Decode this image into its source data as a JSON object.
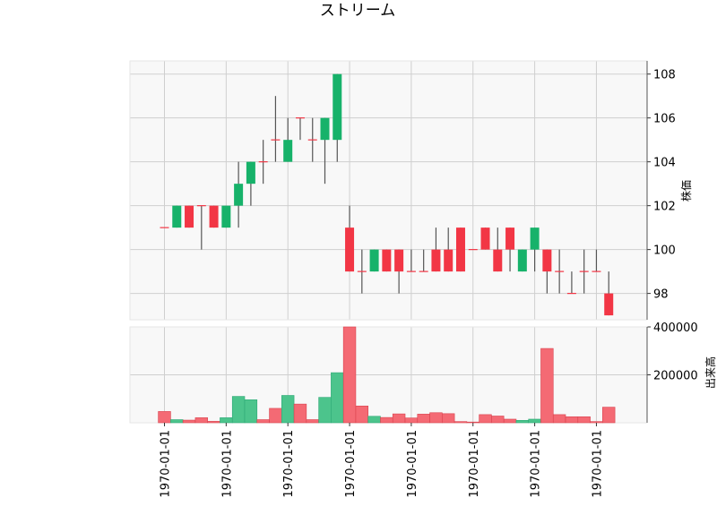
{
  "chart_data": {
    "type": "candlestick",
    "title": "ストリーム",
    "price_ylabel": "株価",
    "volume_ylabel": "出来高",
    "price_ylim": [
      96.8,
      108.6
    ],
    "volume_ylim": [
      0,
      400000
    ],
    "price_yticks": [
      98,
      100,
      102,
      104,
      106,
      108
    ],
    "volume_yticks": [
      200000,
      400000
    ],
    "volume_ytick_labels": [
      "200000",
      "400000"
    ],
    "x_tick_labels": [
      "1970-01-01",
      "1970-01-01",
      "1970-01-01",
      "1970-01-01",
      "1970-01-01",
      "1970-01-01",
      "1970-01-01",
      "1970-01-01"
    ],
    "colors": {
      "up": "#17b26a",
      "down": "#f23645",
      "wick": "#555555",
      "up_volume": "#4cc48c",
      "down_volume": "#f46a74",
      "panel_bg": "#f8f8f8",
      "grid": "#cfcfcf"
    },
    "candles": [
      {
        "open": 101,
        "high": 101,
        "low": 101,
        "close": 101,
        "volume": 47000
      },
      {
        "open": 101,
        "high": 102,
        "low": 101,
        "close": 102,
        "volume": 13000
      },
      {
        "open": 102,
        "high": 102,
        "low": 101,
        "close": 101,
        "volume": 11000
      },
      {
        "open": 102,
        "high": 102,
        "low": 100,
        "close": 102,
        "volume": 21000
      },
      {
        "open": 102,
        "high": 102,
        "low": 101,
        "close": 101,
        "volume": 6000
      },
      {
        "open": 101,
        "high": 102,
        "low": 101,
        "close": 102,
        "volume": 21000
      },
      {
        "open": 102,
        "high": 104,
        "low": 101,
        "close": 103,
        "volume": 110000
      },
      {
        "open": 103,
        "high": 104,
        "low": 102,
        "close": 104,
        "volume": 96000
      },
      {
        "open": 104,
        "high": 105,
        "low": 103,
        "close": 104,
        "volume": 13000
      },
      {
        "open": 105,
        "high": 107,
        "low": 104,
        "close": 105,
        "volume": 60000
      },
      {
        "open": 104,
        "high": 106,
        "low": 104,
        "close": 105,
        "volume": 114000
      },
      {
        "open": 106,
        "high": 106,
        "low": 105,
        "close": 106,
        "volume": 78000
      },
      {
        "open": 105,
        "high": 106,
        "low": 104,
        "close": 105,
        "volume": 13000
      },
      {
        "open": 105,
        "high": 106,
        "low": 103,
        "close": 106,
        "volume": 106000
      },
      {
        "open": 105,
        "high": 108,
        "low": 104,
        "close": 108,
        "volume": 209000
      },
      {
        "open": 101,
        "high": 102,
        "low": 99,
        "close": 99,
        "volume": 400000
      },
      {
        "open": 99,
        "high": 100,
        "low": 98,
        "close": 99,
        "volume": 70000
      },
      {
        "open": 99,
        "high": 100,
        "low": 99,
        "close": 100,
        "volume": 27000
      },
      {
        "open": 100,
        "high": 100,
        "low": 99,
        "close": 99,
        "volume": 22000
      },
      {
        "open": 100,
        "high": 100,
        "low": 98,
        "close": 99,
        "volume": 37000
      },
      {
        "open": 99,
        "high": 100,
        "low": 99,
        "close": 99,
        "volume": 20000
      },
      {
        "open": 99,
        "high": 100,
        "low": 99,
        "close": 99,
        "volume": 36000
      },
      {
        "open": 100,
        "high": 101,
        "low": 99,
        "close": 99,
        "volume": 42000
      },
      {
        "open": 100,
        "high": 101,
        "low": 99,
        "close": 99,
        "volume": 38000
      },
      {
        "open": 101,
        "high": 101,
        "low": 99,
        "close": 99,
        "volume": 5000
      },
      {
        "open": 100,
        "high": 100,
        "low": 100,
        "close": 100,
        "volume": 3000
      },
      {
        "open": 101,
        "high": 101,
        "low": 100,
        "close": 100,
        "volume": 34000
      },
      {
        "open": 100,
        "high": 101,
        "low": 99,
        "close": 99,
        "volume": 28000
      },
      {
        "open": 101,
        "high": 101,
        "low": 99,
        "close": 100,
        "volume": 15000
      },
      {
        "open": 99,
        "high": 100,
        "low": 99,
        "close": 100,
        "volume": 10000
      },
      {
        "open": 100,
        "high": 101,
        "low": 99,
        "close": 101,
        "volume": 15000
      },
      {
        "open": 100,
        "high": 100,
        "low": 98,
        "close": 99,
        "volume": 310000
      },
      {
        "open": 99,
        "high": 100,
        "low": 98,
        "close": 99,
        "volume": 34000
      },
      {
        "open": 98,
        "high": 99,
        "low": 98,
        "close": 98,
        "volume": 25000
      },
      {
        "open": 99,
        "high": 100,
        "low": 98,
        "close": 99,
        "volume": 25000
      },
      {
        "open": 99,
        "high": 100,
        "low": 99,
        "close": 99,
        "volume": 5000
      },
      {
        "open": 98,
        "high": 99,
        "low": 97,
        "close": 97,
        "volume": 65000
      }
    ]
  }
}
